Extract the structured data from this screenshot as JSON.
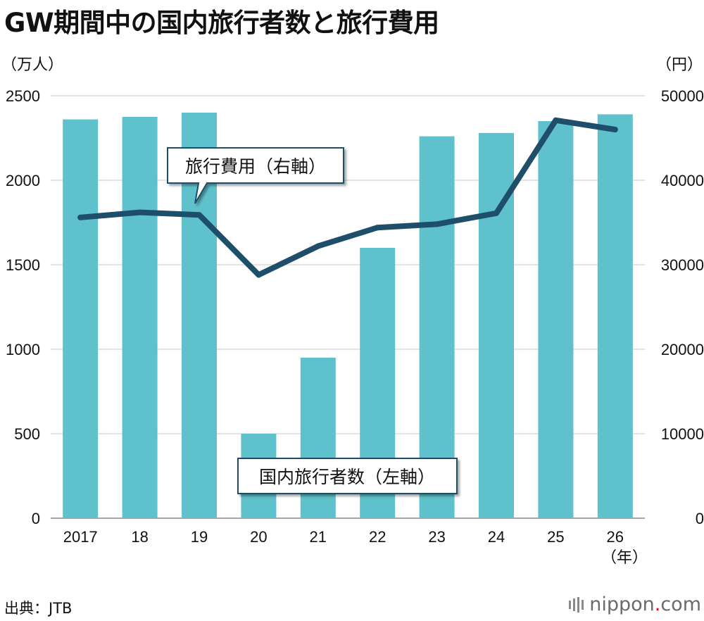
{
  "title": "GW期間中の国内旅行者数と旅行費用",
  "left_unit": "（万人）",
  "right_unit": "（円）",
  "x_unit": "（年）",
  "source": "出典：JTB",
  "brand": {
    "name": "nippon",
    "dot": ".",
    "tld": "com"
  },
  "colors": {
    "bar": "#5fc1cc",
    "line": "#1f4e6b",
    "gridline": "#c8c8c8"
  },
  "chart_data": {
    "type": "bar+line",
    "categories": [
      "2017",
      "18",
      "19",
      "20",
      "21",
      "22",
      "23",
      "24",
      "25",
      "26"
    ],
    "series": [
      {
        "name": "国内旅行者数（左軸）",
        "type": "bar",
        "axis": "left",
        "values": [
          2360,
          2375,
          2400,
          500,
          950,
          1600,
          2260,
          2280,
          2350,
          2390
        ]
      },
      {
        "name": "旅行費用（右軸）",
        "type": "line",
        "axis": "right",
        "values": [
          35600,
          36200,
          35900,
          28800,
          32200,
          34400,
          34800,
          36100,
          47100,
          46000
        ]
      }
    ],
    "left_axis": {
      "ylim": [
        0,
        2500
      ],
      "ticks": [
        "0",
        "500",
        "1000",
        "1500",
        "2000",
        "2500"
      ]
    },
    "right_axis": {
      "ylim": [
        0,
        50000
      ],
      "ticks": [
        "0",
        "10000",
        "20000",
        "30000",
        "40000",
        "50000"
      ]
    },
    "grid": true
  }
}
